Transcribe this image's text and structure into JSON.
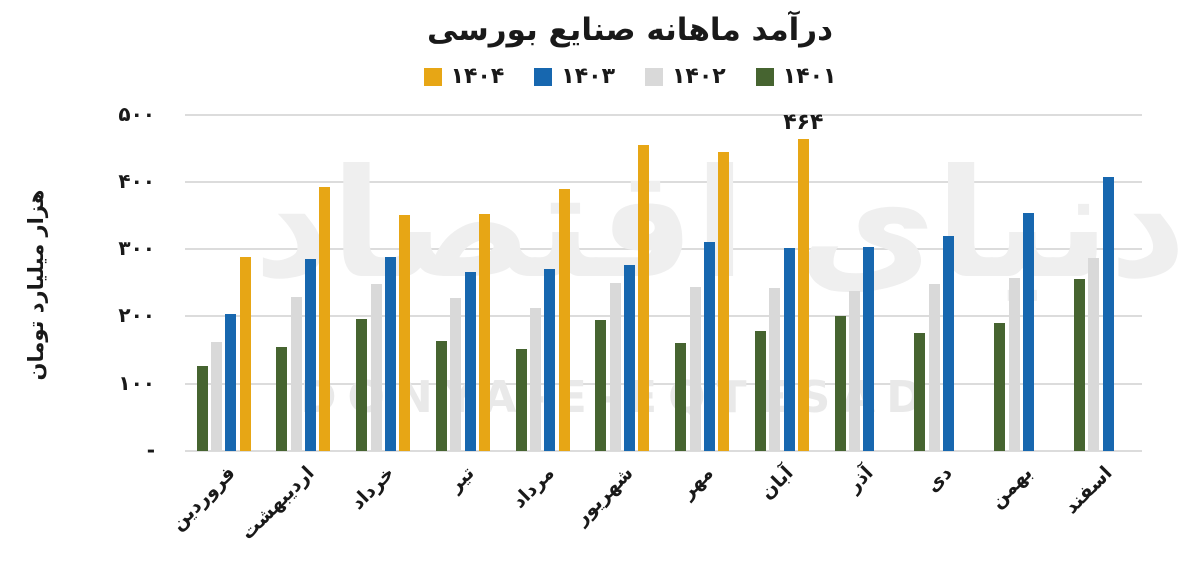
{
  "chart": {
    "title": "درآمد ماهانه صنایع بورسی",
    "ylabel": "هزار میلیارد تومان",
    "watermark_persian": "دنیای اقتصاد",
    "watermark_latin": "DONYA-E-EQTESAD",
    "annotation": {
      "label": "۴۶۴",
      "value": 464,
      "series": "۱۴۰۴",
      "category": "آبان"
    }
  },
  "legend": {
    "items": [
      {
        "label": "۱۴۰۴",
        "color": "#E7A615"
      },
      {
        "label": "۱۴۰۳",
        "color": "#1767AF"
      },
      {
        "label": "۱۴۰۲",
        "color": "#D9D9D9"
      },
      {
        "label": "۱۴۰۱",
        "color": "#466430"
      }
    ]
  },
  "chart_data": {
    "type": "bar",
    "title": "درآمد ماهانه صنایع بورسی",
    "ylabel": "هزار میلیارد تومان",
    "xlabel": "",
    "categories": [
      "فروردین",
      "اردیبهشت",
      "خرداد",
      "تیر",
      "مرداد",
      "شهریور",
      "مهر",
      "آبان",
      "آذر",
      "دی",
      "بهمن",
      "اسفند"
    ],
    "series": [
      {
        "name": "۱۴۰۱",
        "year": "1401",
        "color": "#466430",
        "values": [
          126,
          154,
          196,
          164,
          152,
          195,
          160,
          178,
          201,
          175,
          190,
          256
        ]
      },
      {
        "name": "۱۴۰۲",
        "year": "1402",
        "color": "#D9D9D9",
        "values": [
          162,
          229,
          248,
          227,
          212,
          250,
          243,
          242,
          238,
          248,
          257,
          287
        ]
      },
      {
        "name": "۱۴۰۳",
        "year": "1403",
        "color": "#1767AF",
        "values": [
          203,
          285,
          289,
          266,
          270,
          277,
          310,
          302,
          303,
          319,
          353,
          407
        ]
      },
      {
        "name": "۱۴۰۴",
        "year": "1404",
        "color": "#E7A615",
        "values": [
          289,
          393,
          350,
          352,
          389,
          455,
          444,
          464,
          null,
          null,
          null,
          null
        ]
      }
    ],
    "yticks": [
      {
        "value": 0,
        "label": "-"
      },
      {
        "value": 100,
        "label": "۱۰۰"
      },
      {
        "value": 200,
        "label": "۲۰۰"
      },
      {
        "value": 300,
        "label": "۳۰۰"
      },
      {
        "value": 400,
        "label": "۴۰۰"
      },
      {
        "value": 500,
        "label": "۵۰۰"
      }
    ],
    "ylim": [
      0,
      500
    ],
    "grid": "horizontal",
    "legend_position": "top",
    "legend_order": [
      "۱۴۰۴",
      "۱۴۰۳",
      "۱۴۰۲",
      "۱۴۰۱"
    ],
    "annotations": [
      {
        "series": "۱۴۰۴",
        "category": "آبان",
        "label": "۴۶۴"
      }
    ]
  }
}
